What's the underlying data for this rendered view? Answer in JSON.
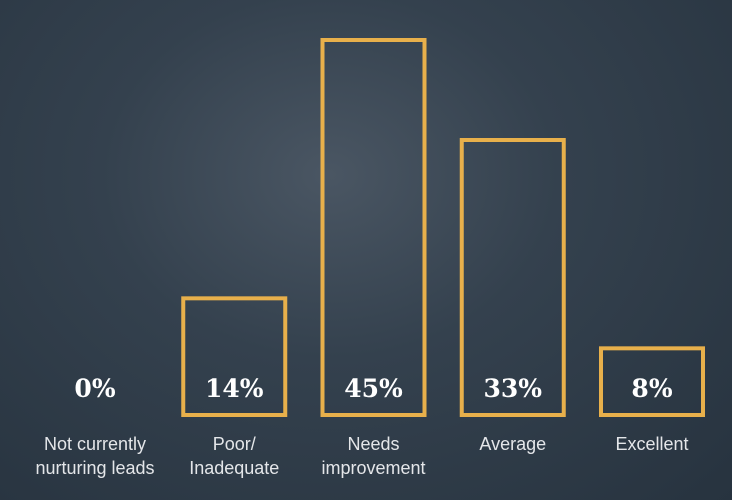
{
  "chart_data": {
    "type": "bar",
    "categories": [
      "Not currently\nnurturing leads",
      "Poor/\nInadequate",
      "Needs\nimprovement",
      "Average",
      "Excellent"
    ],
    "values": [
      0,
      14,
      45,
      33,
      8
    ],
    "value_labels": [
      "0%",
      "14%",
      "45%",
      "33%",
      "8%"
    ],
    "color": "#e8b04b"
  }
}
